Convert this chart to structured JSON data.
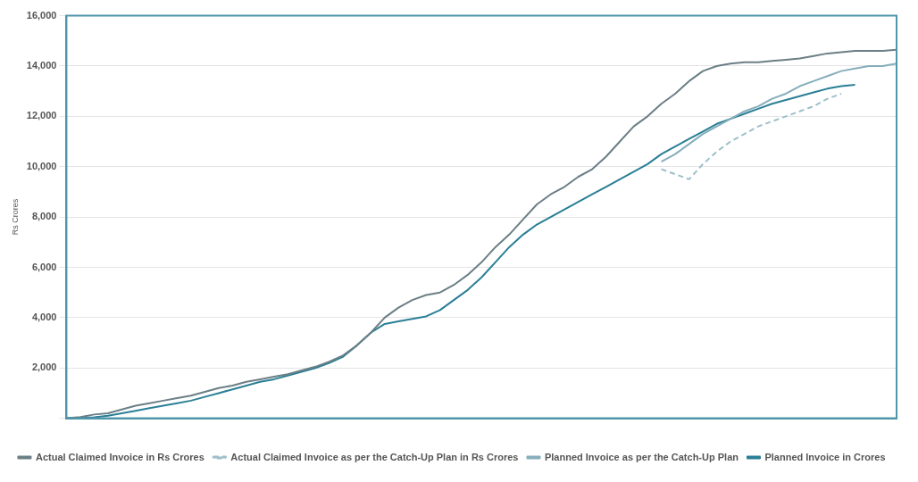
{
  "chart_data": {
    "type": "line",
    "ylabel": "Rs Crores",
    "categories": [
      null,
      null,
      null,
      null,
      null,
      null,
      null,
      null,
      null,
      null,
      null,
      null,
      null,
      null,
      null,
      null,
      null,
      null,
      null,
      null,
      null,
      null,
      null,
      null,
      null,
      null,
      null,
      null,
      null,
      null,
      null,
      null,
      null,
      null,
      null,
      null,
      null,
      null,
      null,
      null,
      null,
      null,
      null,
      null,
      null,
      null,
      null,
      null,
      null,
      null,
      null,
      null,
      null,
      null,
      null,
      null,
      null,
      null,
      null,
      null,
      null
    ],
    "series": [
      {
        "name": "Actual Claimed Invoice in Rs Crores",
        "color": "#6b7f86",
        "values": [
          0,
          50,
          150,
          200,
          350,
          500,
          600,
          700,
          800,
          900,
          1050,
          1200,
          1300,
          1450,
          1550,
          1650,
          1750,
          1900,
          2050,
          2250,
          2500,
          2900,
          3400,
          4000,
          4400,
          4700,
          4900,
          5000,
          5300,
          5700,
          6200,
          6800,
          7300,
          7900,
          8500,
          8900,
          9200,
          9600,
          9900,
          10400,
          11000,
          11600,
          12000,
          12500,
          12900,
          13400,
          13800,
          14000,
          14100,
          14150,
          14150,
          14200,
          14250,
          14300,
          14400,
          14500,
          14550,
          14600,
          14600,
          14600,
          14650
        ]
      },
      {
        "name": "Actual Claimed Invoice as per the Catch-Up Plan in Rs Crores",
        "color": "#9dbfca",
        "line_style": "dashed",
        "values": [
          null,
          null,
          null,
          null,
          null,
          null,
          null,
          null,
          null,
          null,
          null,
          null,
          null,
          null,
          null,
          null,
          null,
          null,
          null,
          null,
          null,
          null,
          null,
          null,
          null,
          null,
          null,
          null,
          null,
          null,
          null,
          null,
          null,
          null,
          null,
          null,
          null,
          null,
          null,
          null,
          null,
          null,
          null,
          9900,
          9700,
          9500,
          10100,
          10600,
          11000,
          11300,
          11600,
          11800,
          12000,
          12200,
          12400,
          12700,
          12900,
          null,
          null,
          null,
          null
        ]
      },
      {
        "name": "Planned Invoice as per the Catch-Up Plan",
        "color": "#86aebb",
        "values": [
          null,
          null,
          null,
          null,
          null,
          null,
          null,
          null,
          null,
          null,
          null,
          null,
          null,
          null,
          null,
          null,
          null,
          null,
          null,
          null,
          null,
          null,
          null,
          null,
          null,
          null,
          null,
          null,
          null,
          null,
          null,
          null,
          null,
          null,
          null,
          null,
          null,
          null,
          null,
          null,
          null,
          null,
          null,
          10200,
          10500,
          10900,
          11300,
          11600,
          11900,
          12200,
          12400,
          12700,
          12900,
          13200,
          13400,
          13600,
          13800,
          13900,
          14000,
          14000,
          14100
        ]
      },
      {
        "name": "Planned Invoice in Crores",
        "color": "#2a7f96",
        "values": [
          0,
          20,
          40,
          100,
          200,
          300,
          400,
          500,
          600,
          700,
          850,
          1000,
          1150,
          1300,
          1450,
          1550,
          1700,
          1850,
          2000,
          2200,
          2450,
          2900,
          3400,
          3750,
          3850,
          3950,
          4050,
          4300,
          4700,
          5100,
          5600,
          6200,
          6800,
          7300,
          7700,
          8000,
          8300,
          8600,
          8900,
          9200,
          9500,
          9800,
          10100,
          10500,
          10800,
          11100,
          11400,
          11700,
          11900,
          12100,
          12300,
          12500,
          12650,
          12800,
          12950,
          13100,
          13200,
          13250,
          null,
          null,
          null
        ]
      }
    ],
    "ylim": [
      0,
      16000
    ],
    "yticks": [
      {
        "value": 0,
        "label": null
      },
      {
        "value": 2000,
        "label": "2,000"
      },
      {
        "value": 4000,
        "label": "4,000"
      },
      {
        "value": 6000,
        "label": "6,000"
      },
      {
        "value": 8000,
        "label": "8,000"
      },
      {
        "value": 10000,
        "label": "10,000"
      },
      {
        "value": 12000,
        "label": "12,000"
      },
      {
        "value": 14000,
        "label": "14,000"
      },
      {
        "value": 16000,
        "label": "16,000"
      }
    ],
    "grid": "y",
    "legend": "bottom",
    "marker": "none"
  }
}
